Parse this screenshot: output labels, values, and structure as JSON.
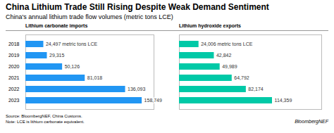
{
  "chart_data": {
    "type": "bar",
    "orientation": "horizontal",
    "title": "China Lithium Trade Still Rising Despite Weak Demand Sentiment",
    "subtitle": "China's annual lithium trade flow volumes (metric tons LCE)",
    "annotations": [
      "Source: BloombergNEF, China Customs.\nNote: LCE is lithium carbonate equivalent.",
      "BloombergNEF"
    ],
    "categories": [
      "2018",
      "2019",
      "2020",
      "2021",
      "2022",
      "2023"
    ],
    "series": [
      {
        "name": "Lithium carbonate imports",
        "color": "#2196F3",
        "values": [
          24497,
          29315,
          50126,
          81018,
          136093,
          158749
        ],
        "value_labels": [
          "24,497 metric tons LCE",
          "29,315",
          "50,126",
          "81,018",
          "136,093",
          "158,749"
        ]
      },
      {
        "name": "Lithium hydroxide exports",
        "color": "#00C9A7",
        "values": [
          24006,
          42842,
          49989,
          64792,
          82174,
          114359
        ],
        "value_labels": [
          "24,006 metric tons LCE",
          "42,842",
          "49,989",
          "64,792",
          "82,174",
          "114,359"
        ]
      }
    ],
    "xlim": [
      0,
      175000
    ],
    "data_labels": true,
    "tick_labels": "y",
    "grid": false
  }
}
